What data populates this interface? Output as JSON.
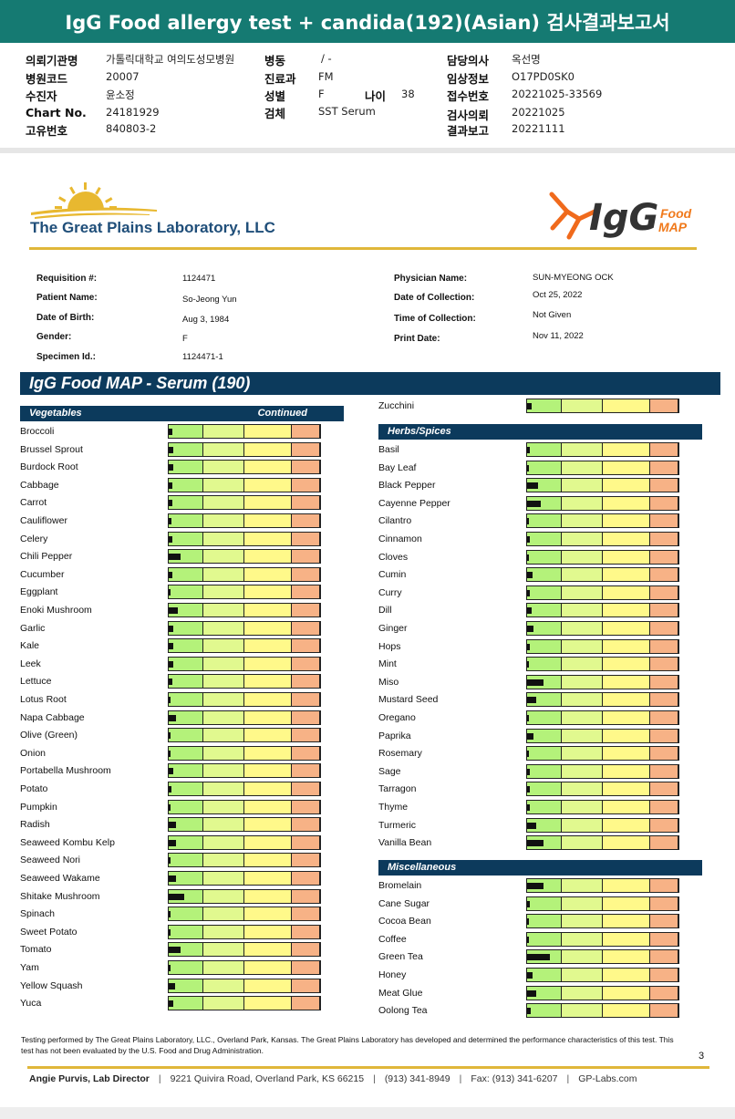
{
  "banner": {
    "title": "IgG Food allergy test + candida(192)(Asian) 검사결과보고서"
  },
  "kr_info": {
    "col1": [
      {
        "label": "의뢰기관명",
        "value": "가톨릭대학교 여의도성모병원"
      },
      {
        "label": "병원코드",
        "value": "20007"
      },
      {
        "label": "수진자",
        "value": "윤소정"
      },
      {
        "label": "Chart No.",
        "value": "24181929"
      },
      {
        "label": "고유번호",
        "value": "840803-2"
      }
    ],
    "col2": [
      {
        "label": "병동",
        "value": "/ -"
      },
      {
        "label": "진료과",
        "value": "FM"
      },
      {
        "label": "성별",
        "value": "F"
      },
      {
        "label": "검체",
        "value": "SST Serum"
      }
    ],
    "age": {
      "label": "나이",
      "value": "38"
    },
    "col3": [
      {
        "label": "담당의사",
        "value": "옥선명"
      },
      {
        "label": "임상정보",
        "value": "O17PD0SK0"
      },
      {
        "label": "접수번호",
        "value": "20221025-33569"
      },
      {
        "label": "검사의뢰",
        "value": "20221025"
      },
      {
        "label": "결과보고",
        "value": "20221111"
      }
    ]
  },
  "lab": {
    "name": "The Great Plains Laboratory, LLC",
    "logo_main": "IgG",
    "logo_sub1": "Food",
    "logo_sub2": "MAP"
  },
  "patient": {
    "left": [
      {
        "label": "Requisition #:",
        "value": "1124471"
      },
      {
        "label": "Patient Name:",
        "value": "So-Jeong Yun"
      },
      {
        "label": "Date of Birth:",
        "value": "Aug 3, 1984"
      },
      {
        "label": "Gender:",
        "value": "F"
      },
      {
        "label": "Specimen Id.:",
        "value": "1124471-1"
      }
    ],
    "right": [
      {
        "label": "Physician Name:",
        "value": "SUN-MYEONG OCK"
      },
      {
        "label": "Date of Collection:",
        "value": "Oct 25, 2022"
      },
      {
        "label": "Time of Collection:",
        "value": "Not Given"
      },
      {
        "label": "Print Date:",
        "value": "Nov 11, 2022"
      }
    ]
  },
  "section_title": "IgG Food MAP - Serum (190)",
  "categories": {
    "vegetables": {
      "title": "Vegetables",
      "continued": "Continued"
    },
    "herbs": {
      "title": "Herbs/Spices"
    },
    "misc": {
      "title": "Miscellaneous"
    }
  },
  "colors": {
    "green": "#b4f27a",
    "light_green": "#e1f98f",
    "yellow": "#fff98a",
    "orange": "#f7b286",
    "navy": "#0c3a5c",
    "teal": "#157a72",
    "gold": "#e0b73a"
  },
  "chart_data": {
    "type": "bar",
    "scale_note": "Level shown as fraction of full bar width",
    "vegetables": [
      {
        "name": "Broccoli",
        "level": 0.024
      },
      {
        "name": "Brussel Sprout",
        "level": 0.03
      },
      {
        "name": "Burdock Root",
        "level": 0.03
      },
      {
        "name": "Cabbage",
        "level": 0.024
      },
      {
        "name": "Carrot",
        "level": 0.024
      },
      {
        "name": "Cauliflower",
        "level": 0.018
      },
      {
        "name": "Celery",
        "level": 0.024
      },
      {
        "name": "Chili Pepper",
        "level": 0.08
      },
      {
        "name": "Cucumber",
        "level": 0.024
      },
      {
        "name": "Eggplant",
        "level": 0.012
      },
      {
        "name": "Enoki Mushroom",
        "level": 0.06
      },
      {
        "name": "Garlic",
        "level": 0.03
      },
      {
        "name": "Kale",
        "level": 0.03
      },
      {
        "name": "Leek",
        "level": 0.03
      },
      {
        "name": "Lettuce",
        "level": 0.024
      },
      {
        "name": "Lotus Root",
        "level": 0.006
      },
      {
        "name": "Napa Cabbage",
        "level": 0.05
      },
      {
        "name": "Olive (Green)",
        "level": 0.006
      },
      {
        "name": "Onion",
        "level": 0.012
      },
      {
        "name": "Portabella Mushroom",
        "level": 0.03
      },
      {
        "name": "Potato",
        "level": 0.018
      },
      {
        "name": "Pumpkin",
        "level": 0.012
      },
      {
        "name": "Radish",
        "level": 0.05
      },
      {
        "name": "Seaweed Kombu Kelp",
        "level": 0.05
      },
      {
        "name": "Seaweed Nori",
        "level": 0.012
      },
      {
        "name": "Seaweed Wakame",
        "level": 0.05
      },
      {
        "name": "Shitake Mushroom",
        "level": 0.1
      },
      {
        "name": "Spinach",
        "level": 0.012
      },
      {
        "name": "Sweet Potato",
        "level": 0.012
      },
      {
        "name": "Tomato",
        "level": 0.08
      },
      {
        "name": "Yam",
        "level": 0.012
      },
      {
        "name": "Yellow Squash",
        "level": 0.04
      },
      {
        "name": "Yuca",
        "level": 0.03
      }
    ],
    "right_top": [
      {
        "name": "Zucchini",
        "level": 0.03
      }
    ],
    "herbs": [
      {
        "name": "Basil",
        "level": 0.018
      },
      {
        "name": "Bay Leaf",
        "level": 0.006
      },
      {
        "name": "Black Pepper",
        "level": 0.07
      },
      {
        "name": "Cayenne Pepper",
        "level": 0.09
      },
      {
        "name": "Cilantro",
        "level": 0.006
      },
      {
        "name": "Cinnamon",
        "level": 0.018
      },
      {
        "name": "Cloves",
        "level": 0.006
      },
      {
        "name": "Cumin",
        "level": 0.035
      },
      {
        "name": "Curry",
        "level": 0.018
      },
      {
        "name": "Dill",
        "level": 0.03
      },
      {
        "name": "Ginger",
        "level": 0.04
      },
      {
        "name": "Hops",
        "level": 0.018
      },
      {
        "name": "Mint",
        "level": 0.006
      },
      {
        "name": "Miso",
        "level": 0.11
      },
      {
        "name": "Mustard Seed",
        "level": 0.06
      },
      {
        "name": "Oregano",
        "level": 0.006
      },
      {
        "name": "Paprika",
        "level": 0.04
      },
      {
        "name": "Rosemary",
        "level": 0.006
      },
      {
        "name": "Sage",
        "level": 0.018
      },
      {
        "name": "Tarragon",
        "level": 0.018
      },
      {
        "name": "Thyme",
        "level": 0.018
      },
      {
        "name": "Turmeric",
        "level": 0.06
      },
      {
        "name": "Vanilla Bean",
        "level": 0.11
      }
    ],
    "misc": [
      {
        "name": "Bromelain",
        "level": 0.11
      },
      {
        "name": "Cane Sugar",
        "level": 0.018
      },
      {
        "name": "Cocoa Bean",
        "level": 0.006
      },
      {
        "name": "Coffee",
        "level": 0.006
      },
      {
        "name": "Green Tea",
        "level": 0.15
      },
      {
        "name": "Honey",
        "level": 0.035
      },
      {
        "name": "Meat Glue",
        "level": 0.06
      },
      {
        "name": "Oolong Tea",
        "level": 0.024
      }
    ]
  },
  "footnote": "Testing performed by The Great Plains Laboratory, LLC., Overland Park, Kansas.  The Great Plains Laboratory has developed and determined the performance characteristics of this test.  This test has not been evaluated by the U.S.  Food and Drug Administration.",
  "page_number": "3",
  "footer": {
    "director": "Angie Purvis, Lab Director",
    "address": "9221 Quivira Road, Overland Park, KS 66215",
    "phone": "(913) 341-8949",
    "fax": "Fax: (913) 341-6207",
    "web": "GP-Labs.com"
  }
}
